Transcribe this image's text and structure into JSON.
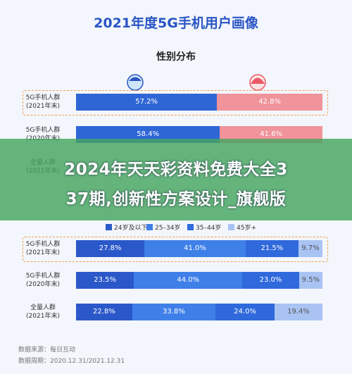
{
  "header": {
    "title": "2021年度5G手机用户画像"
  },
  "chart_data": [
    {
      "type": "stacked-bar-horizontal",
      "subtitle": "性别分布",
      "categories": [
        "5G手机人群\n(2021年末)",
        "5G手机人群\n(2020年末)",
        "全量人群\n(2021年末)"
      ],
      "xlim": [
        0,
        100
      ],
      "series": [
        {
          "color": "#2f66d6",
          "values": [
            57.2,
            58.4,
            null
          ],
          "value_labels": [
            "57.2%",
            "58.4%",
            null
          ]
        },
        {
          "color": "#f0939a",
          "values": [
            42.8,
            41.6,
            null
          ],
          "value_labels": [
            "42.8%",
            "41.6%",
            null
          ]
        }
      ]
    },
    {
      "type": "stacked-bar-horizontal",
      "categories": [
        "5G手机人群\n(2021年末)",
        "5G手机人群\n(2020年末)",
        "全量人群\n(2021年末)"
      ],
      "xlim": [
        0,
        100
      ],
      "series": [
        {
          "name": "24岁及以下",
          "color": "#2b58c9",
          "values": [
            27.8,
            23.5,
            22.8
          ],
          "value_labels": [
            "27.8%",
            "23.5%",
            "22.8%"
          ]
        },
        {
          "name": "25–34岁",
          "color": "#3f7fe8",
          "values": [
            41.0,
            44.0,
            33.8
          ],
          "value_labels": [
            "41.0%",
            "44.0%",
            "33.8%"
          ]
        },
        {
          "name": "35–44岁",
          "color": "#2f69dc",
          "values": [
            21.5,
            23.0,
            24.0
          ],
          "value_labels": [
            "21.5%",
            "23.0%",
            "24.0%"
          ]
        },
        {
          "name": "45岁+",
          "color": "#a9c3f3",
          "values": [
            9.7,
            9.5,
            19.4
          ],
          "value_labels": [
            "9.7%",
            "9.5%",
            "19.4%"
          ]
        }
      ]
    }
  ],
  "banner": {
    "lines": [
      "2024年天天彩资料免费大全3",
      "37期,创新性方案设计_旗舰版"
    ]
  },
  "footer": {
    "source": "数据来源：每日互动",
    "period": "数据周期：2020.12.31/2021.12.31"
  }
}
